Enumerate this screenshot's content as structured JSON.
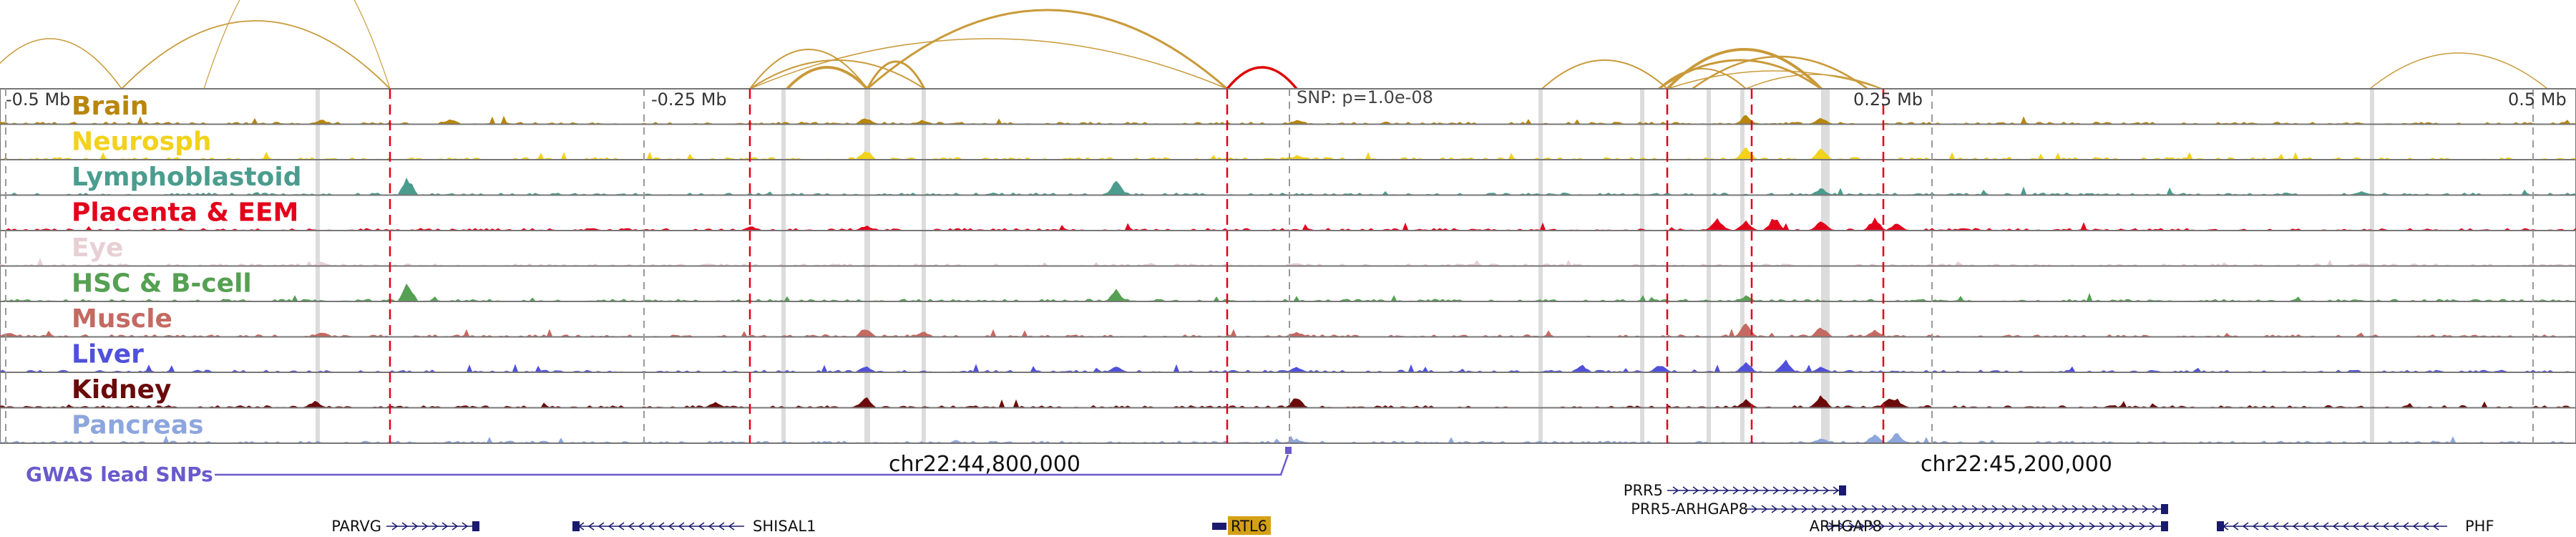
{
  "axis_ticks": [
    "-0.5 Mb",
    "-0.25 Mb",
    "0.25 Mb",
    "0.5 Mb"
  ],
  "snp_label": "SNP: p=1.0e-08",
  "gwas_label": "GWAS lead SNPs",
  "coordinates": [
    "chr22:44,800,000",
    "chr22:45,200,000"
  ],
  "tracks": [
    {
      "name": "Brain",
      "color": "#B8860B"
    },
    {
      "name": "Neurosph",
      "color": "#F2D21B"
    },
    {
      "name": "Lymphoblastoid",
      "color": "#4A9D8E"
    },
    {
      "name": "Placenta & EEM",
      "color": "#E3001B"
    },
    {
      "name": "Eye",
      "color": "#E8CFD6"
    },
    {
      "name": "HSC & B-cell",
      "color": "#55A052"
    },
    {
      "name": "Muscle",
      "color": "#C46A62"
    },
    {
      "name": "Liver",
      "color": "#5050DC"
    },
    {
      "name": "Kidney",
      "color": "#6B0A0A"
    },
    {
      "name": "Pancreas",
      "color": "#8DA6DD"
    }
  ],
  "genes": [
    {
      "name": "PARVG",
      "strand": "+",
      "highlight": false
    },
    {
      "name": "SHISAL1",
      "strand": "-",
      "highlight": false
    },
    {
      "name": "RTL6",
      "strand": "-",
      "highlight": true
    },
    {
      "name": "PRR5",
      "strand": "+",
      "highlight": false
    },
    {
      "name": "PRR5-ARHGAP8",
      "strand": "+",
      "highlight": false
    },
    {
      "name": "ARHGAP8",
      "strand": "+",
      "highlight": false
    },
    {
      "name": "PHF",
      "strand": "-",
      "highlight": false
    }
  ],
  "colors": {
    "loop": "#C99A3A",
    "loop_highlight": "#E00000",
    "red_line": "#E3001B",
    "gwas": "#6A5ACD",
    "gene": "#1A1A6E",
    "gene_highlight": "#D4A017",
    "shade": "#DCDCDC"
  }
}
